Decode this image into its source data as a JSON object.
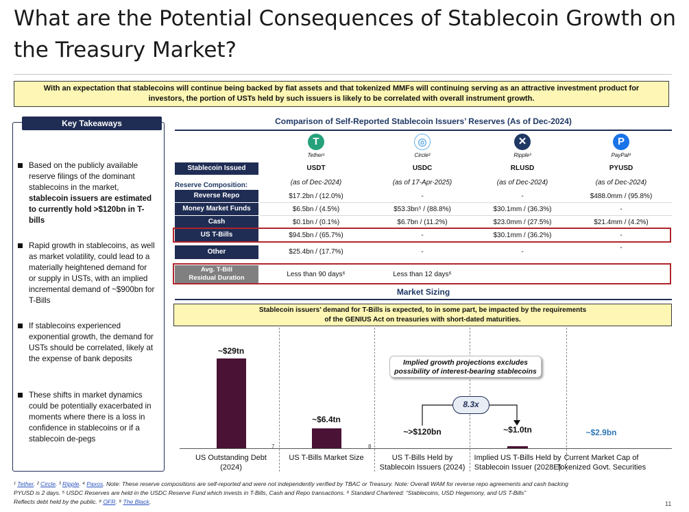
{
  "title": "What are the Potential Consequences of Stablecoin Growth on the Treasury Market?",
  "banner": "With an expectation that stablecoins will continue being backed by fiat assets and that tokenized MMFs will continuing serving as an attractive investment product for investors, the portion of USTs held by such issuers is likely to be correlated with overall instrument growth.",
  "key_takeaways": {
    "heading": "Key Takeaways",
    "bullets": [
      {
        "pre": "Based on the publicly available reserve filings of the dominant stablecoins in the market, ",
        "bold": "stablecoin issuers are estimated to currently hold >$120bn in T-bills"
      },
      {
        "pre": "Rapid growth in stablecoins, as well as market volatility, could lead to a materially heightened demand for or supply in USTs, with an implied incremental demand of ~$900bn for T-Bills",
        "bold": ""
      },
      {
        "pre": "If stablecoins experienced exponential growth, the demand for USTs should be correlated, likely at the expense of bank deposits",
        "bold": ""
      },
      {
        "pre": "These shifts in market dynamics could be potentially exacerbated in moments where there is a loss in confidence in stablecoins or if a stablecoin de-pegs",
        "bold": ""
      }
    ]
  },
  "comparison": {
    "title": "Comparison of Self-Reported Stablecoin Issuers’ Reserves (As of Dec-2024)",
    "issuers": [
      {
        "name": "Tether¹",
        "icon": "T",
        "color": "#26a17b"
      },
      {
        "name": "Circle²",
        "icon": "◎",
        "color": "#6ab0e6"
      },
      {
        "name": "Ripple³",
        "icon": "✕",
        "color": "#1f3864"
      },
      {
        "name": "PayPal⁴",
        "icon": "P",
        "color": "#1a73e8"
      }
    ],
    "stablecoin_label": "Stablecoin Issued",
    "coins": [
      "USDT",
      "USDC",
      "RLUSD",
      "PYUSD"
    ],
    "as_of": [
      "(as of Dec-2024)",
      "(as of 17-Apr-2025)",
      "(as of Dec-2024)",
      "(as of Dec-2024)"
    ],
    "reserve_composition_label": "Reserve Composition:",
    "rows": [
      {
        "label": "Reverse Repo",
        "values": [
          "$17.2bn / (12.0%)",
          "-",
          "-",
          "$488.0mm / (95.8%)"
        ]
      },
      {
        "label": "Money Market Funds",
        "values": [
          "$6.5bn / (4.5%)",
          "$53.3bn⁵ / (88.8%)",
          "$30.1mm / (36.3%)",
          "-"
        ]
      },
      {
        "label": "Cash",
        "values": [
          "$0.1bn / (0.1%)",
          "$6.7bn / (11.2%)",
          "$23.0mm / (27.5%)",
          "$21.4mm / (4.2%)"
        ]
      },
      {
        "label": "US T-Bills",
        "values": [
          "$94.5bn / (65.7%)",
          "-",
          "$30.1mm / (36.2%)",
          "-"
        ]
      },
      {
        "label": "Other",
        "values": [
          "$25.4bn / (17.7%)",
          "-",
          "-",
          "-"
        ]
      }
    ],
    "wam": {
      "label_line1": "Avg. T-Bill",
      "label_line2": "Residual Duration",
      "values": [
        "Less than 90 days⁶",
        "Less than 12 days⁶",
        "",
        ""
      ]
    }
  },
  "market_sizing": {
    "title": "Market Sizing",
    "banner_line1": "Stablecoin issuers’ demand for T-Bills is expected, to in some part, be impacted by the requirements",
    "banner_line2": "of the GENIUS Act on treasuries with short-dated maturities.",
    "callout_line1": "Implied growth projections excludes",
    "callout_line2": "possibility of interest-bearing stablecoins",
    "multiple": "8.3x",
    "footnote_markers": [
      "7",
      "8"
    ]
  },
  "chart_data": {
    "type": "bar",
    "categories": [
      "US Outstanding Debt (2024)",
      "US T-Bills Market Size",
      "US T-Bills Held by Stablecoin Issuers (2024)",
      "Implied US T-Bills Held by Stablecoin Issuer (2028E)",
      "Current Market Cap of Tokenized Govt. Securities"
    ],
    "value_labels": [
      "~$29tn",
      "~$6.4tn",
      "~>$120bn",
      "~$1.0tn",
      "~$2.9bn"
    ],
    "values_usd_bn": [
      29000,
      6400,
      120,
      1000,
      2.9
    ],
    "x_label_lines": [
      [
        "US Outstanding Debt",
        "(2024)"
      ],
      [
        "US T-Bills Market Size",
        ""
      ],
      [
        "US T-Bills Held by",
        "Stablecoin Issuers (2024)"
      ],
      [
        "Implied US T-Bills Held by",
        "Stablecoin Issuer (2028E)"
      ],
      [
        "Current Market Cap of",
        "Tokenized Govt. Securities"
      ]
    ],
    "colors": {
      "bar": "#4a1235",
      "small_label": "#2e75b6"
    }
  },
  "footnotes": {
    "refs": [
      "Tether",
      "Circle",
      "Ripple",
      "Paxos",
      "OFR",
      "The Black"
    ],
    "line1_tail": ". Note: These reserve compositions are self-reported and were not independently verified by TBAC or Treasury. Note: Overall WAM for reverse repo agreements and cash backing",
    "line2": "PYUSD is 2 days. ⁵ USDC Reserves are held in the USDC Reserve Fund which invests in T-Bills, Cash and Repo transactions. ⁶ Standard Chartered: “Stablecoins, USD Hegemony, and US T-Bills”",
    "line3_pre": "Reflects debt held by the public. ⁸ ",
    "page": "11"
  }
}
